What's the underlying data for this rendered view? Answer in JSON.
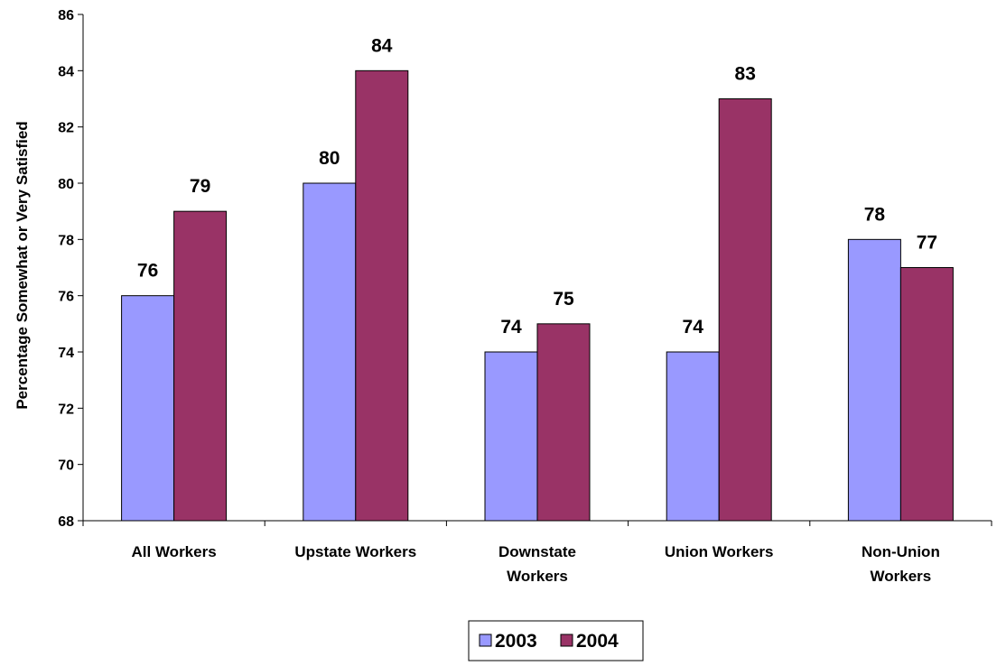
{
  "chart_data": {
    "type": "bar",
    "title": "",
    "xlabel": "",
    "ylabel": "Percentage Somewhat or Very Satisfied",
    "ylim": [
      68,
      86
    ],
    "yticks": [
      68,
      70,
      72,
      74,
      76,
      78,
      80,
      82,
      84,
      86
    ],
    "categories": [
      [
        "All Workers"
      ],
      [
        "Upstate Workers"
      ],
      [
        "Downstate",
        "Workers"
      ],
      [
        "Union Workers"
      ],
      [
        "Non-Union",
        "Workers"
      ]
    ],
    "series": [
      {
        "name": "2003",
        "color": "#9999ff",
        "values": [
          76,
          80,
          74,
          74,
          78
        ]
      },
      {
        "name": "2004",
        "color": "#993366",
        "values": [
          79,
          84,
          75,
          83,
          77
        ]
      }
    ],
    "data_labels": true,
    "grid": false,
    "legend_position": "bottom-center"
  }
}
